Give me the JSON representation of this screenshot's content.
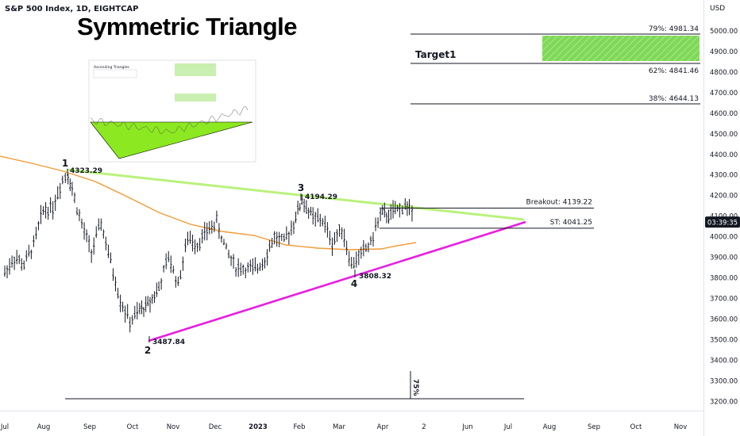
{
  "header": {
    "symbol_title": "S&P 500 Index, 1D, EIGHTCAP",
    "chart_title": "Symmetric Triangle",
    "currency": "USD"
  },
  "price_badge": {
    "text": "03:39:35",
    "bg": "#131722",
    "fg": "#ffffff"
  },
  "colors": {
    "candles": "#131722",
    "ma_line": "#f29a33",
    "upper_trendline": "#b9f27c",
    "lower_trendline": "#e81ee0",
    "target_fill": "#7fd858",
    "fib_line": "#131722"
  },
  "inset_image": {
    "description_icon": "ascending-triangle-thumbnail-icon",
    "title": "Ascending Triangles"
  },
  "chart_data": {
    "type": "candlestick",
    "title": "Symmetric Triangle",
    "xlabel": "",
    "ylabel": "",
    "ylim": [
      3150,
      5100
    ],
    "y_ticks": [
      3200,
      3300,
      3400,
      3500,
      3600,
      3700,
      3800,
      3900,
      4000,
      4100,
      4200,
      4300,
      4400,
      4500,
      4600,
      4700,
      4800,
      4900,
      5000
    ],
    "x_ticks": [
      "Jul",
      "Aug",
      "Sep",
      "Oct",
      "Nov",
      "Dec",
      "2023",
      "Feb",
      "Mar",
      "Apr",
      "2",
      "Jun",
      "Jul",
      "Aug",
      "Sep",
      "Oct",
      "Nov"
    ],
    "series": [
      {
        "name": "",
        "points_date_close": [
          [
            "2022-07-01",
            3825
          ],
          [
            "2022-07-08",
            3899
          ],
          [
            "2022-07-15",
            3863
          ],
          [
            "2022-07-22",
            3962
          ],
          [
            "2022-07-29",
            4130
          ],
          [
            "2022-08-05",
            4145
          ],
          [
            "2022-08-12",
            4280
          ],
          [
            "2022-08-16",
            4305
          ],
          [
            "2022-08-19",
            4228
          ],
          [
            "2022-08-26",
            4057
          ],
          [
            "2022-09-02",
            3924
          ],
          [
            "2022-09-09",
            4067
          ],
          [
            "2022-09-16",
            3873
          ],
          [
            "2022-09-23",
            3693
          ],
          [
            "2022-09-30",
            3585
          ],
          [
            "2022-10-07",
            3640
          ],
          [
            "2022-10-13",
            3670
          ],
          [
            "2022-10-21",
            3752
          ],
          [
            "2022-10-28",
            3901
          ],
          [
            "2022-11-04",
            3770
          ],
          [
            "2022-11-11",
            3992
          ],
          [
            "2022-11-18",
            3965
          ],
          [
            "2022-11-25",
            4026
          ],
          [
            "2022-12-02",
            4071
          ],
          [
            "2022-12-09",
            3934
          ],
          [
            "2022-12-16",
            3852
          ],
          [
            "2022-12-23",
            3844
          ],
          [
            "2022-12-30",
            3839
          ],
          [
            "2023-01-06",
            3895
          ],
          [
            "2023-01-13",
            3999
          ],
          [
            "2023-01-20",
            3972
          ],
          [
            "2023-01-27",
            4070
          ],
          [
            "2023-02-02",
            4179
          ],
          [
            "2023-02-10",
            4090
          ],
          [
            "2023-02-17",
            4079
          ],
          [
            "2023-02-24",
            3970
          ],
          [
            "2023-03-03",
            4045
          ],
          [
            "2023-03-10",
            3861
          ],
          [
            "2023-03-17",
            3916
          ],
          [
            "2023-03-24",
            3970
          ],
          [
            "2023-03-31",
            4109
          ],
          [
            "2023-04-06",
            4105
          ],
          [
            "2023-04-14",
            4137
          ],
          [
            "2023-04-18",
            4154
          ],
          [
            "2023-04-21",
            4133
          ],
          [
            "2023-04-25",
            4071
          ]
        ]
      }
    ],
    "pivots": [
      {
        "label": "1",
        "value": "4323.29"
      },
      {
        "label": "2",
        "value": "3487.84"
      },
      {
        "label": "3",
        "value": "4194.29"
      },
      {
        "label": "4",
        "value": "3808.32"
      }
    ],
    "levels": [
      {
        "label": "Breakout: 4139.22",
        "value": 4139.22
      },
      {
        "label": "ST: 4041.25",
        "value": 4041.25
      }
    ],
    "fib_levels": [
      {
        "label": "79%: 4981.34",
        "value": 4981.34
      },
      {
        "label": "62%: 4841.46",
        "value": 4841.46
      },
      {
        "label": "38%: 4644.13",
        "value": 4644.13
      }
    ],
    "target_label": "Target1",
    "measure_label": "75%",
    "grid": false
  }
}
